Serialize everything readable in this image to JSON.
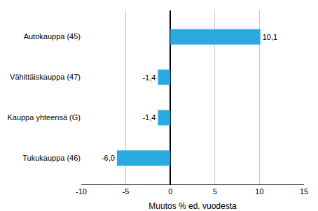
{
  "chart_data": {
    "type": "bar",
    "orientation": "horizontal",
    "categories": [
      "Tukukauppa (46)",
      "Kauppa yhteensä (G)",
      "Vähittäiskauppa (47)",
      "Autokauppa (45)"
    ],
    "values": [
      -6.0,
      -1.4,
      -1.4,
      10.1
    ],
    "value_labels": [
      "-6,0",
      "-1,4",
      "-1,4",
      "10,1"
    ],
    "data_labels": true,
    "color": "#29abe2",
    "xlabel": "Muutos % ed. vuodesta",
    "xlim": [
      -10,
      15
    ],
    "xticks": [
      -10,
      -5,
      0,
      5,
      10,
      15
    ],
    "grid": true
  }
}
